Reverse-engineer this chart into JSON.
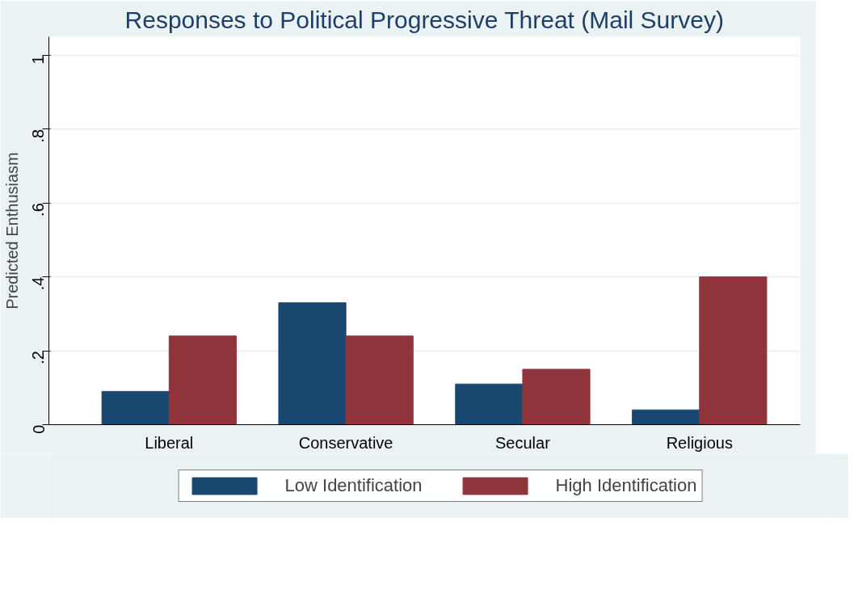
{
  "chart_data": {
    "type": "bar",
    "title": "Responses to Political Progressive Threat (Mail Survey)",
    "ylabel": "Predicted Enthusiasm",
    "categories": [
      "Liberal",
      "Conservative",
      "Secular",
      "Religious"
    ],
    "series": [
      {
        "name": "Low Identification",
        "color": "#1a476f",
        "values": [
          0.09,
          0.33,
          0.11,
          0.04
        ]
      },
      {
        "name": "High Identification",
        "color": "#90353b",
        "values": [
          0.24,
          0.24,
          0.15,
          0.4
        ]
      }
    ],
    "ylim": [
      0,
      1.05
    ],
    "yticks": [
      {
        "value": 0,
        "label": "0"
      },
      {
        "value": 0.2,
        "label": ".2"
      },
      {
        "value": 0.4,
        "label": ".4"
      },
      {
        "value": 0.6,
        "label": ".6"
      },
      {
        "value": 0.8,
        "label": ".8"
      },
      {
        "value": 1,
        "label": "1"
      }
    ],
    "grid": "y",
    "legend": "bottom"
  }
}
